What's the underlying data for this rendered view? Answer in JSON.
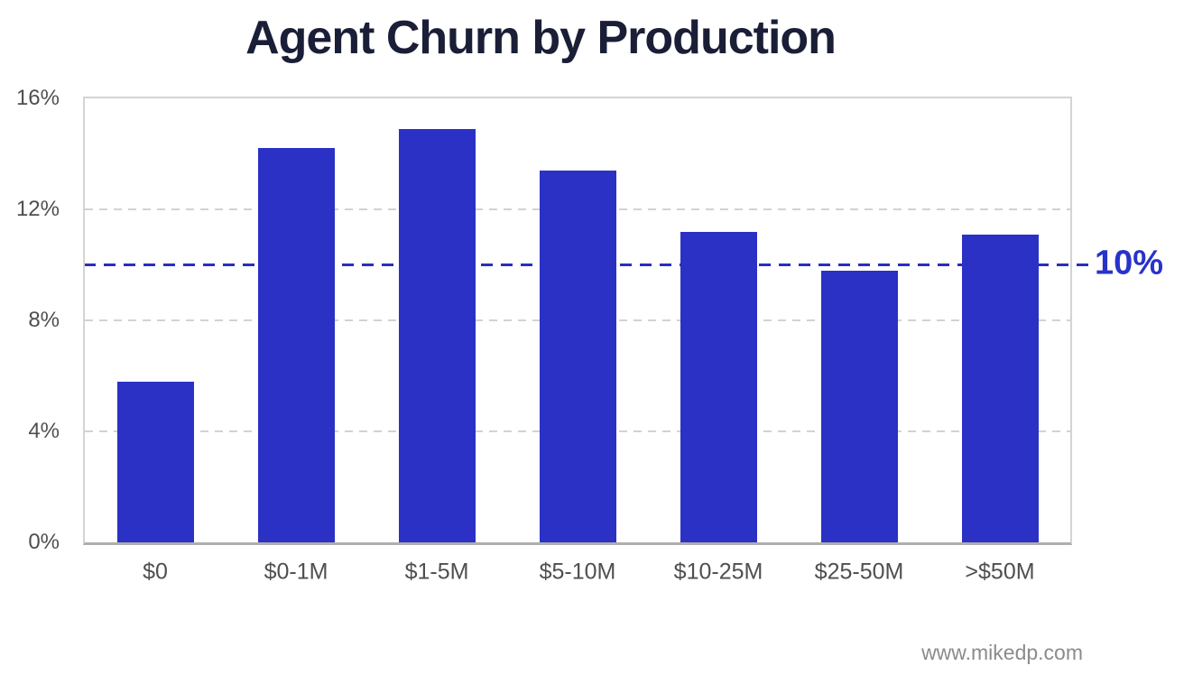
{
  "chart_data": {
    "type": "bar",
    "title": "Agent Churn by Production",
    "categories": [
      "$0",
      "$0-1M",
      "$1-5M",
      "$5-10M",
      "$10-25M",
      "$25-50M",
      ">$50M"
    ],
    "values": [
      5.8,
      14.2,
      14.9,
      13.4,
      11.2,
      9.8,
      11.1
    ],
    "unit": "%",
    "ylim": [
      0,
      16
    ],
    "y_ticks": [
      "0%",
      "4%",
      "8%",
      "12%",
      "16%"
    ],
    "grid": "horizontal dashed gridlines at 4%, 8%, 12%",
    "legend": "none",
    "reference_line": {
      "value": 10,
      "label": "10%"
    },
    "colors": {
      "bar": "#2b31c4",
      "reference_line": "#2a2ec0",
      "reference_label": "#2832cb",
      "title": "#1a1e36",
      "axis_labels": "#4f4f4f"
    }
  },
  "watermark": {
    "text": "www.mikedp.com"
  }
}
